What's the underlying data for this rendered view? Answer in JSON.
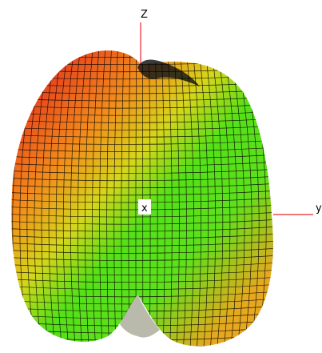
{
  "axes": {
    "z_label": "Z",
    "y_label": "y",
    "x_label": "x"
  },
  "colors": {
    "background": "#ffffff",
    "axis": "#e8262a",
    "mesh_lines": "#000000",
    "gradient_warm": "#e8241c",
    "gradient_mid": "#f0a21e",
    "gradient_cool": "#2fe01a"
  }
}
